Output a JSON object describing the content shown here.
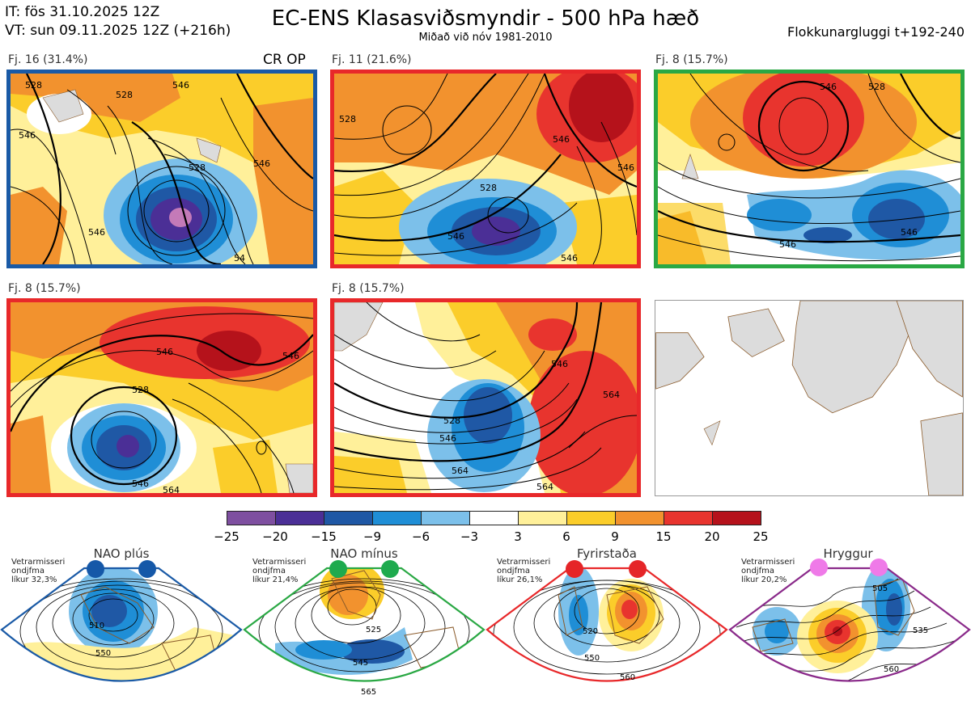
{
  "header": {
    "init_time": "IT: fös 31.10.2025 12Z",
    "valid_time": "VT: sun 09.11.2025 12Z  (+216h)",
    "title": "EC-ENS Klasasviðsmyndir - 500 hPa hæð",
    "subtitle": "Miðað við nóv 1981-2010",
    "window": "Flokkunargluggi t+192-240"
  },
  "clusters": [
    {
      "label": "Fj. 16 (31.4%)",
      "members": 16,
      "percent": 31.4,
      "border_color": "#1a5aa6",
      "extra": "CR OP"
    },
    {
      "label": "Fj. 11 (21.6%)",
      "members": 11,
      "percent": 21.6,
      "border_color": "#e8282a"
    },
    {
      "label": "Fj. 8 (15.7%)",
      "members": 8,
      "percent": 15.7,
      "border_color": "#2aa844"
    },
    {
      "label": "Fj. 8 (15.7%)",
      "members": 8,
      "percent": 15.7,
      "border_color": "#e8282a"
    },
    {
      "label": "Fj. 8 (15.7%)",
      "members": 8,
      "percent": 15.7,
      "border_color": "#e8282a"
    }
  ],
  "contour_labels": {
    "c1": [
      "528",
      "546",
      "546",
      "528",
      "54",
      "546",
      "546",
      "528"
    ],
    "c2": [
      "528",
      "546",
      "546",
      "546",
      "546",
      "528"
    ],
    "c3": [
      "546",
      "528",
      "546",
      "546"
    ],
    "c4": [
      "546",
      "546",
      "528",
      "546",
      "564"
    ],
    "c5": [
      "528",
      "546",
      "564",
      "564",
      "546",
      "564"
    ]
  },
  "colorbar": {
    "ticks": [
      "−25",
      "−20",
      "−15",
      "−9",
      "−6",
      "−3",
      "3",
      "6",
      "9",
      "15",
      "20",
      "25"
    ],
    "colors": [
      "#7e4fa0",
      "#4b2f96",
      "#1f58a5",
      "#1f8ed6",
      "#7cc0ea",
      "#ffffff",
      "#fff09a",
      "#fbcd2a",
      "#f2922e",
      "#e8342e",
      "#b5121b"
    ]
  },
  "regimes": [
    {
      "name": "NAO plús",
      "meta": [
        "Vetrarmisseri",
        "ondjfma",
        "líkur 32,3%"
      ],
      "color": "#1a5aa6",
      "dot_color": "#1558a8",
      "labels": [
        "510",
        "550"
      ]
    },
    {
      "name": "NAO mínus",
      "meta": [
        "Vetrarmisseri",
        "ondjfma",
        "líkur 21,4%"
      ],
      "color": "#2aa844",
      "dot_color": "#1eaa4e",
      "labels": [
        "525",
        "545",
        "565"
      ]
    },
    {
      "name": "Fyrirstaða",
      "meta": [
        "Vetrarmisseri",
        "ondjfma",
        "líkur 26,1%"
      ],
      "color": "#e8282a",
      "dot_color": "#e52528",
      "labels": [
        "520",
        "550",
        "560"
      ]
    },
    {
      "name": "Hryggur",
      "meta": [
        "Vetrarmisseri",
        "ondjfma",
        "líkur 20,2%"
      ],
      "color": "#8a2a8a",
      "dot_color": "#ef7ae8",
      "labels": [
        "505",
        "535",
        "560"
      ]
    }
  ]
}
